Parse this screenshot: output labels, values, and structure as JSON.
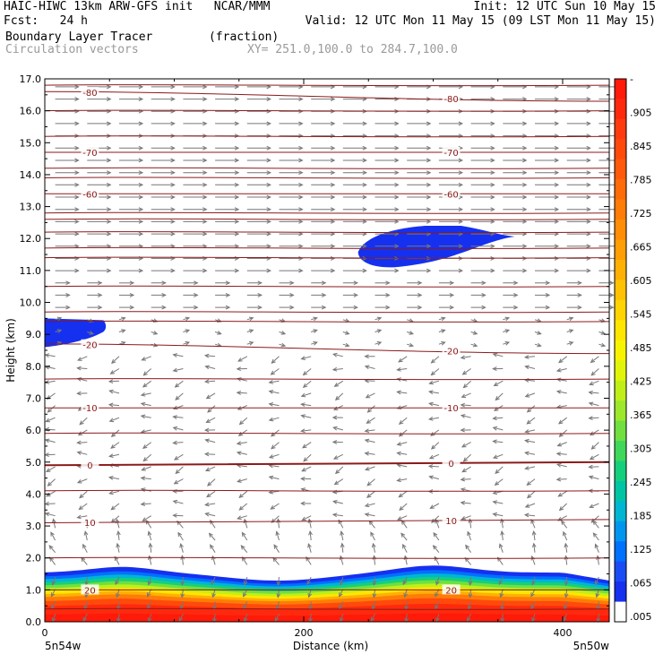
{
  "header": {
    "line1_left": "HAIC-HIWC 13km ARW-GFS init   NCAR/MMM",
    "line1_right": "Init: 12 UTC Sun 10 May 15",
    "line2_left": "Fcst:   24 h",
    "line2_right": "Valid: 12 UTC Mon 11 May 15 (09 LST Mon 11 May 15)",
    "line3_left": "Boundary Layer Tracer        (fraction)",
    "line4_left": "Circulation vectors",
    "line4_right": "XY= 251.0,100.0 to 284.7,100.0"
  },
  "colors": {
    "contour": "#8b1a1a",
    "vector": "#777777",
    "tracer_blue": "#1630f0"
  },
  "chart_data": {
    "type": "cross-section",
    "ylabel": "Height (km)",
    "xlabel": "Distance (km)",
    "y_ticks": [
      "0.0",
      "1.0",
      "2.0",
      "3.0",
      "4.0",
      "5.0",
      "6.0",
      "7.0",
      "8.0",
      "9.0",
      "10.0",
      "11.0",
      "12.0",
      "13.0",
      "14.0",
      "15.0",
      "16.0",
      "17.0"
    ],
    "ylim": [
      0,
      17
    ],
    "x_ticks": [
      "0",
      "200",
      "400"
    ],
    "xlim": [
      0,
      436
    ],
    "x_end_labels": {
      "left": "5n54w",
      "right": "5n50w"
    },
    "temperature_contours": [
      {
        "label": "-80",
        "heights": [
          16.6,
          16.3
        ]
      },
      {
        "label": "-70",
        "heights": [
          14.7,
          14.7
        ]
      },
      {
        "label": "-60",
        "heights": [
          13.4,
          13.4
        ]
      },
      {
        "label": "-20",
        "heights": [
          8.7,
          8.4
        ]
      },
      {
        "label": "-10",
        "heights": [
          6.7,
          6.7
        ]
      },
      {
        "label": "0",
        "heights": [
          4.9,
          5.0
        ]
      },
      {
        "label": "10",
        "heights": [
          3.1,
          3.2
        ]
      },
      {
        "label": "20",
        "heights": [
          1.0,
          1.0
        ]
      }
    ],
    "unlabeled_contours": [
      16.8,
      16.0,
      15.2,
      14.2,
      13.9,
      12.8,
      12.6,
      12.2,
      11.7,
      11.4,
      10.5,
      9.7,
      9.4,
      7.6,
      5.9,
      4.1,
      2.0,
      0.4
    ],
    "tracer_colorbar": {
      "labels": [
        "-",
        ".905",
        ".845",
        ".785",
        ".725",
        ".665",
        ".605",
        ".545",
        ".485",
        ".425",
        ".365",
        ".305",
        ".245",
        ".185",
        ".125",
        ".065",
        ".005"
      ],
      "colors": [
        "#ff1a0a",
        "#ff2a0d",
        "#ff3a0d",
        "#ff4a0c",
        "#ff5a0b",
        "#ff6b09",
        "#ff7c08",
        "#ff8d06",
        "#ff9e05",
        "#ffb004",
        "#ffc203",
        "#ffd402",
        "#ffe600",
        "#f8f400",
        "#e0f50a",
        "#c0ef18",
        "#9de82b",
        "#6fe040",
        "#3fd85a",
        "#16cf7c",
        "#00c5a4",
        "#00b6d2",
        "#0096f0",
        "#0070ff",
        "#1a4cf5",
        "#1630f0",
        "#ffffff"
      ]
    },
    "tracer_features": [
      {
        "name": "upper blob",
        "x_range": [
          242,
          363
        ],
        "height_range": [
          11.1,
          12.4
        ]
      },
      {
        "name": "left blob",
        "x_range": [
          0,
          48
        ],
        "height_range": [
          8.6,
          9.5
        ]
      },
      {
        "name": "boundary layer",
        "x_range": [
          0,
          436
        ],
        "height_range": [
          0,
          1.75
        ]
      }
    ]
  }
}
